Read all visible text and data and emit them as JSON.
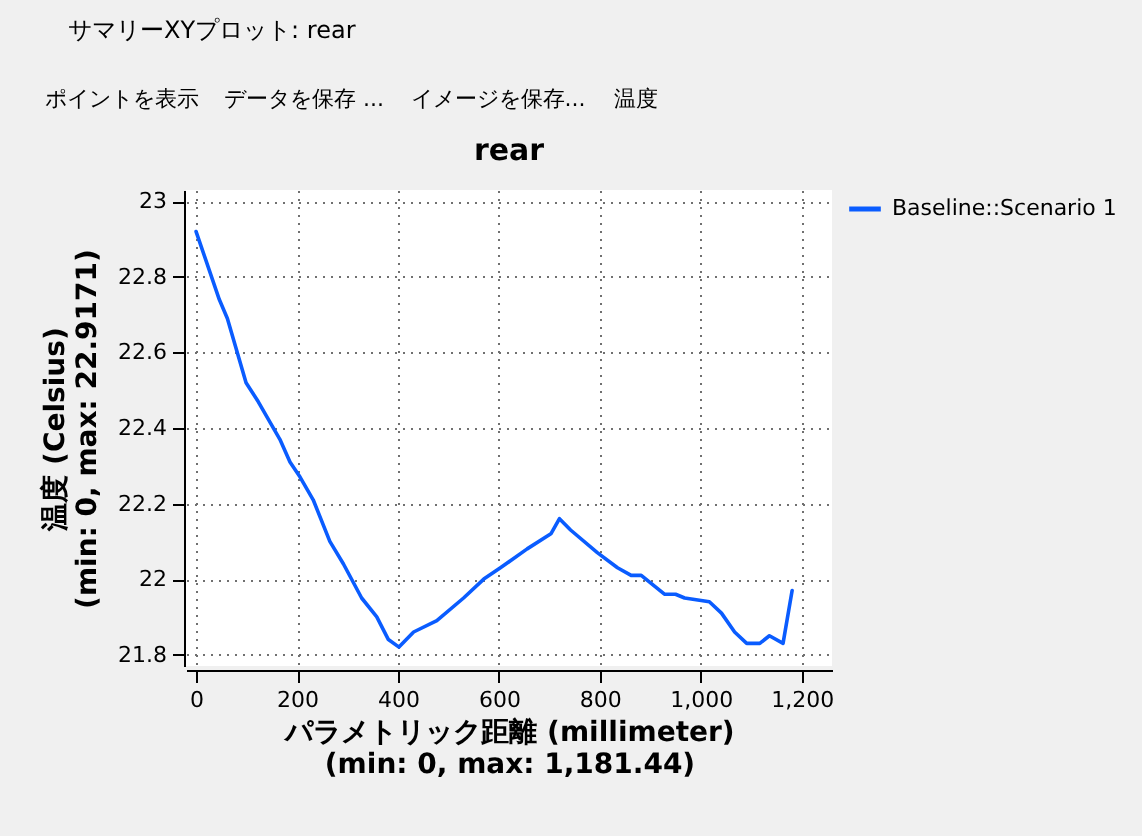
{
  "chart_data": {
    "type": "line",
    "title": "rear",
    "xlabel": "パラメトリック距離 (millimeter)\n(min: 0, max: 1,181.44)",
    "ylabel": "温度 (Celsius)\n(min: 0, max: 22.9171)",
    "x": [
      0,
      46,
      62,
      99,
      123,
      166,
      186,
      206,
      232,
      265,
      292,
      328,
      358,
      381,
      402,
      431,
      477,
      530,
      570,
      603,
      656,
      703,
      720,
      742,
      795,
      835,
      862,
      882,
      928,
      950,
      968,
      1017,
      1041,
      1067,
      1091,
      1117,
      1136,
      1163,
      1181
    ],
    "series": [
      {
        "name": "Baseline::Scenario 1",
        "color": "#0a5cff",
        "values": [
          22.92,
          22.74,
          22.69,
          22.52,
          22.47,
          22.37,
          22.31,
          22.27,
          22.21,
          22.1,
          22.04,
          21.95,
          21.9,
          21.84,
          21.82,
          21.86,
          21.89,
          21.95,
          22.0,
          22.03,
          22.08,
          22.12,
          22.16,
          22.13,
          22.07,
          22.03,
          22.01,
          22.01,
          21.96,
          21.96,
          21.95,
          21.94,
          21.91,
          21.86,
          21.83,
          21.83,
          21.85,
          21.83,
          21.97
        ]
      }
    ],
    "xlim": [
      -20,
      1260
    ],
    "xticks": [
      0,
      200,
      400,
      600,
      800,
      {
        "value": 1000,
        "label": "1,000"
      },
      {
        "value": 1200,
        "label": "1,200"
      }
    ],
    "ylim": [
      21.77,
      23.03
    ],
    "yticks": [
      21.8,
      22,
      22.2,
      22.4,
      22.6,
      22.8,
      23
    ],
    "grid": true,
    "legend": "top right",
    "annotations": [
      "サマリーXYプロット: rear",
      "ポイントを表示",
      "データを保存 ...",
      "イメージを保存...",
      "温度"
    ]
  }
}
